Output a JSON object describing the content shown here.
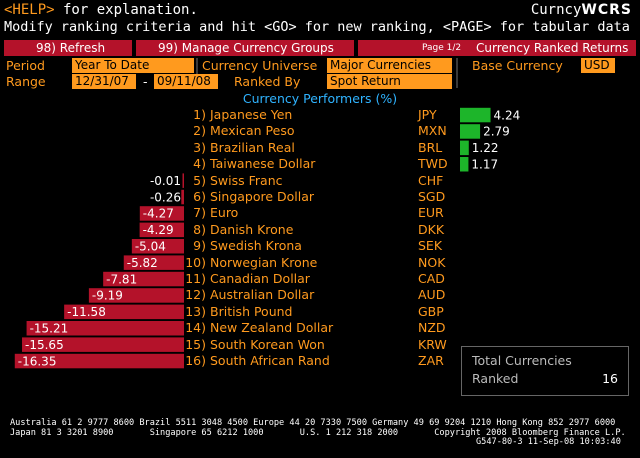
{
  "header": {
    "help_key": "<HELP>",
    "help_text": " for explanation.",
    "instructions": "Modify ranking criteria and hit <GO> for new ranking, <PAGE> for tabular data",
    "function_name": "Curncy",
    "function_code": "WCRS"
  },
  "toolbar": {
    "refresh_label": "98) Refresh",
    "manage_label": "99) Manage Currency Groups",
    "page_indicator": "Page 1/2",
    "screen_title": "Currency Ranked Returns"
  },
  "criteria": {
    "period_label": "Period",
    "period_value": "Year To Date",
    "universe_label": "Currency Universe",
    "universe_value": "Major Currencies",
    "base_label": "Base Currency",
    "base_value": "USD",
    "range_label": "Range",
    "range_start": "12/31/07",
    "range_dash": "-",
    "range_end": "09/11/08",
    "ranked_by_label": "Ranked By",
    "ranked_by_value": "Spot Return"
  },
  "section_heading": "Currency Performers  (%)",
  "colors": {
    "positive": "#1db52a",
    "negative": "#b4122a",
    "accent": "#ff9a1e",
    "heading": "#2fb3ff"
  },
  "currencies": [
    {
      "rank": "1)",
      "name": "Japanese Yen",
      "code": "JPY",
      "label": "4.24"
    },
    {
      "rank": "2)",
      "name": "Mexican Peso",
      "code": "MXN",
      "label": "2.79"
    },
    {
      "rank": "3)",
      "name": "Brazilian Real",
      "code": "BRL",
      "label": "1.22"
    },
    {
      "rank": "4)",
      "name": "Taiwanese Dollar",
      "code": "TWD",
      "label": "1.17"
    },
    {
      "rank": "5)",
      "name": "Swiss Franc",
      "code": "CHF",
      "label": "-0.01"
    },
    {
      "rank": "6)",
      "name": "Singapore Dollar",
      "code": "SGD",
      "label": "-0.26"
    },
    {
      "rank": "7)",
      "name": "Euro",
      "code": "EUR",
      "label": "-4.27"
    },
    {
      "rank": "8)",
      "name": "Danish Krone",
      "code": "DKK",
      "label": "-4.29"
    },
    {
      "rank": "9)",
      "name": "Swedish Krona",
      "code": "SEK",
      "label": "-5.04"
    },
    {
      "rank": "10)",
      "name": "Norwegian Krone",
      "code": "NOK",
      "label": "-5.82"
    },
    {
      "rank": "11)",
      "name": "Canadian Dollar",
      "code": "CAD",
      "label": "-7.81"
    },
    {
      "rank": "12)",
      "name": "Australian Dollar",
      "code": "AUD",
      "label": "-9.19"
    },
    {
      "rank": "13)",
      "name": "British Pound",
      "code": "GBP",
      "label": "-11.58"
    },
    {
      "rank": "14)",
      "name": "New Zealand Dollar",
      "code": "NZD",
      "label": "-15.21"
    },
    {
      "rank": "15)",
      "name": "South Korean Won",
      "code": "KRW",
      "label": "-15.65"
    },
    {
      "rank": "16)",
      "name": "South African Rand",
      "code": "ZAR",
      "label": "-16.35"
    }
  ],
  "chart_data": {
    "type": "bar",
    "orientation": "horizontal",
    "categories": [
      "JPY",
      "MXN",
      "BRL",
      "TWD",
      "CHF",
      "SGD",
      "EUR",
      "DKK",
      "SEK",
      "NOK",
      "CAD",
      "AUD",
      "GBP",
      "NZD",
      "KRW",
      "ZAR"
    ],
    "values": [
      4.24,
      2.79,
      1.22,
      1.17,
      -0.01,
      -0.26,
      -4.27,
      -4.29,
      -5.04,
      -5.82,
      -7.81,
      -9.19,
      -11.58,
      -15.21,
      -15.65,
      -16.35
    ],
    "title": "Currency Performers  (%)"
  },
  "summary": {
    "total_label": "Total Currencies",
    "ranked_label": "Ranked",
    "count": "16"
  },
  "footer": {
    "line1": "Australia 61 2 9777 8600 Brazil 5511 3048 4500 Europe 44 20 7330 7500 Germany 49 69 9204 1210 Hong Kong 852 2977 6000",
    "line2": "Japan 81 3 3201 8900       Singapore 65 6212 1000       U.S. 1 212 318 2000       Copyright 2008 Bloomberg Finance L.P.",
    "line3": "G547-80-3 11-Sep-08 10:03:40"
  }
}
